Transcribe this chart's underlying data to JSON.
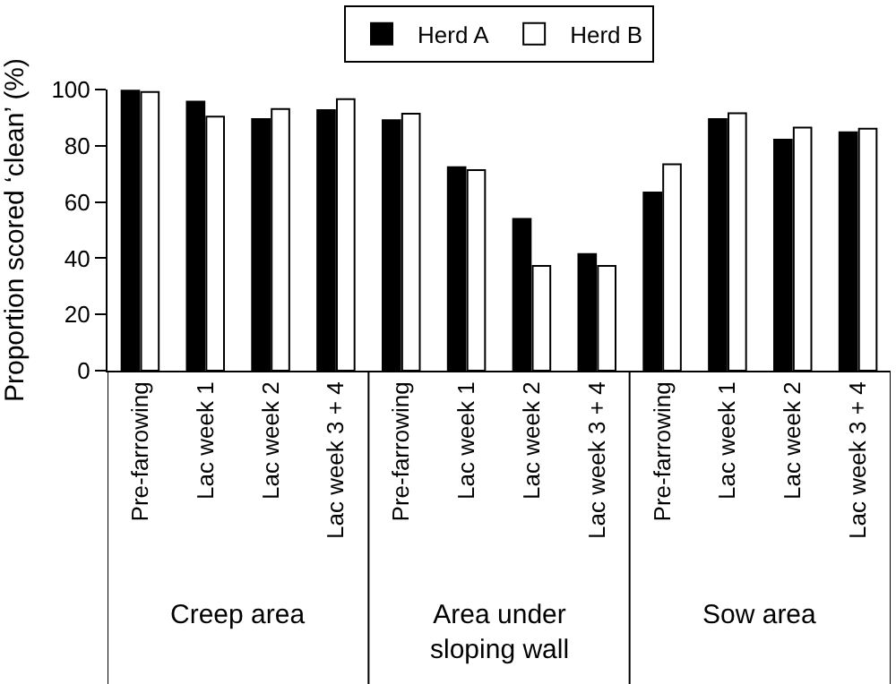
{
  "chart_data": {
    "type": "bar",
    "categories": [
      "Pre-farrowing",
      "Lac week 1",
      "Lac week 2",
      "Lac week 3 + 4",
      "Pre-farrowing",
      "Lac week 1",
      "Lac week 2",
      "Lac week 3 + 4",
      "Pre-farrowing",
      "Lac week 1",
      "Lac week 2",
      "Lac week 3 + 4"
    ],
    "series": [
      {
        "name": "Herd A",
        "color": "#000000",
        "values": [
          99.6,
          95.7,
          89.5,
          92.7,
          89.1,
          72.4,
          54.0,
          41.5,
          63.4,
          89.5,
          82.2,
          84.8
        ]
      },
      {
        "name": "Herd B",
        "color": "#ffffff",
        "values": [
          99.1,
          90.4,
          93.1,
          96.6,
          91.4,
          71.3,
          37.3,
          37.3,
          73.4,
          91.6,
          86.5,
          86.1
        ]
      }
    ],
    "ylabel": "Proportion scored ‘clean’ (%)",
    "annotations": [
      "Creep area",
      "Area under\nsloping wall",
      "Sow area"
    ],
    "ylim": [
      0,
      100
    ],
    "yticks": [
      0,
      20,
      40,
      60,
      80,
      100
    ],
    "legend": "top"
  }
}
